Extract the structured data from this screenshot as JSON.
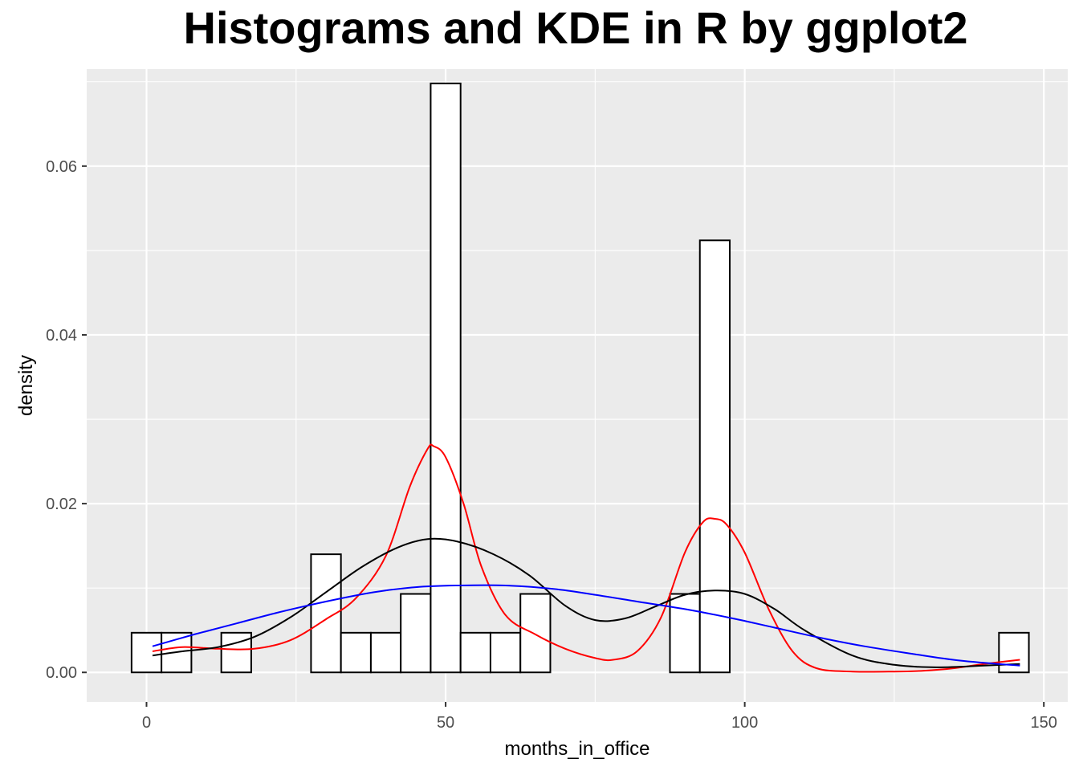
{
  "chart_data": {
    "type": "bar",
    "title": "Histograms and KDE in R by ggplot2",
    "xlabel": "months_in_office",
    "ylabel": "density",
    "xlim": [
      -10,
      154
    ],
    "ylim": [
      -0.0035,
      0.0715
    ],
    "x_ticks": [
      0,
      50,
      100,
      150
    ],
    "y_ticks": [
      0.0,
      0.02,
      0.04,
      0.06
    ],
    "x_tick_labels": [
      "0",
      "50",
      "100",
      "150"
    ],
    "y_tick_labels": [
      "0.00",
      "0.02",
      "0.04",
      "0.06"
    ],
    "grid": true,
    "background": "#ebebeb",
    "histogram": {
      "bin_width": 5,
      "fill": "#ffffff",
      "stroke": "#000000",
      "bins": [
        {
          "start": -2.5,
          "end": 2.5,
          "density": 0.0047
        },
        {
          "start": 2.5,
          "end": 7.5,
          "density": 0.0047
        },
        {
          "start": 12.5,
          "end": 17.5,
          "density": 0.0047
        },
        {
          "start": 27.5,
          "end": 32.5,
          "density": 0.014
        },
        {
          "start": 32.5,
          "end": 37.5,
          "density": 0.0047
        },
        {
          "start": 37.5,
          "end": 42.5,
          "density": 0.0047
        },
        {
          "start": 42.5,
          "end": 47.5,
          "density": 0.0093
        },
        {
          "start": 47.5,
          "end": 52.5,
          "density": 0.0698
        },
        {
          "start": 52.5,
          "end": 57.5,
          "density": 0.0047
        },
        {
          "start": 57.5,
          "end": 62.5,
          "density": 0.0047
        },
        {
          "start": 62.5,
          "end": 67.5,
          "density": 0.0093
        },
        {
          "start": 87.5,
          "end": 92.5,
          "density": 0.0093
        },
        {
          "start": 92.5,
          "end": 97.5,
          "density": 0.0512
        },
        {
          "start": 142.5,
          "end": 147.5,
          "density": 0.0047
        }
      ]
    },
    "series": [
      {
        "kind": "kde",
        "color": "#ff0000",
        "x": [
          1,
          6,
          12,
          18,
          24,
          30,
          35,
          40,
          44,
          47,
          48,
          50,
          53,
          56,
          60,
          65,
          70,
          75,
          78,
          82,
          86,
          90,
          93,
          95,
          97,
          100,
          104,
          108,
          112,
          118,
          125,
          130,
          135,
          140,
          146
        ],
        "y": [
          0.0025,
          0.003,
          0.0028,
          0.0028,
          0.0038,
          0.0063,
          0.0088,
          0.0138,
          0.022,
          0.0265,
          0.0268,
          0.0255,
          0.02,
          0.0125,
          0.0068,
          0.0045,
          0.0028,
          0.0017,
          0.0015,
          0.0025,
          0.0065,
          0.0142,
          0.0178,
          0.0182,
          0.0175,
          0.0142,
          0.0075,
          0.0025,
          0.0005,
          0.0001,
          0.0001,
          0.0002,
          0.0005,
          0.001,
          0.0015
        ]
      },
      {
        "kind": "kde",
        "color": "#000000",
        "x": [
          1,
          6,
          12,
          18,
          24,
          30,
          36,
          42,
          47,
          52,
          58,
          64,
          70,
          75,
          80,
          85,
          90,
          95,
          100,
          105,
          110,
          118,
          125,
          132,
          140,
          146
        ],
        "y": [
          0.002,
          0.0025,
          0.003,
          0.0042,
          0.0065,
          0.0095,
          0.0125,
          0.0148,
          0.0158,
          0.0155,
          0.014,
          0.0115,
          0.0079,
          0.0062,
          0.0064,
          0.0078,
          0.0092,
          0.0097,
          0.0093,
          0.0075,
          0.005,
          0.002,
          0.0009,
          0.0006,
          0.0008,
          0.001
        ]
      },
      {
        "kind": "kde",
        "color": "#0000ff",
        "x": [
          1,
          8,
          15,
          22,
          30,
          38,
          45,
          52,
          60,
          68,
          75,
          82,
          90,
          98,
          105,
          112,
          120,
          128,
          136,
          146
        ],
        "y": [
          0.0031,
          0.0045,
          0.0058,
          0.0071,
          0.0084,
          0.0095,
          0.0101,
          0.0103,
          0.0103,
          0.0099,
          0.0092,
          0.0084,
          0.0075,
          0.0064,
          0.0053,
          0.0042,
          0.0031,
          0.0022,
          0.0014,
          0.0008
        ]
      }
    ]
  }
}
